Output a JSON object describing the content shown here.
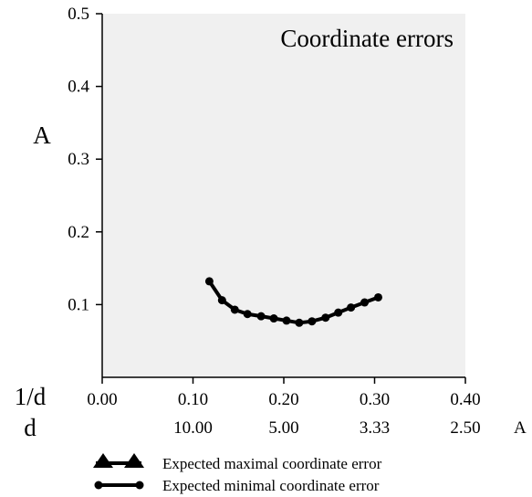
{
  "chart_data": {
    "type": "line",
    "title": "Coordinate errors",
    "ylabel": "A",
    "ylim": [
      0.0,
      0.5
    ],
    "yticks": [
      "0.1",
      "0.2",
      "0.3",
      "0.4",
      "0.5"
    ],
    "ytick_values": [
      0.1,
      0.2,
      0.3,
      0.4,
      0.5
    ],
    "xlim": [
      0.0,
      0.4
    ],
    "x_axis_rows": [
      {
        "label": "1/d",
        "ticks": [
          "0.00",
          "0.10",
          "0.20",
          "0.30",
          "0.40"
        ],
        "tick_values": [
          0.0,
          0.1,
          0.2,
          0.3,
          0.4
        ]
      },
      {
        "label": "d",
        "ticks": [
          "10.00",
          "5.00",
          "3.33",
          "2.50"
        ],
        "tick_values": [
          0.1,
          0.2,
          0.3,
          0.4
        ],
        "unit": "A"
      }
    ],
    "background": "#f0f0f0",
    "series": [
      {
        "name": "Expected maximal coordinate error",
        "marker": "triangle",
        "x": [],
        "y": []
      },
      {
        "name": "Expected minimal coordinate error",
        "marker": "circle",
        "x": [
          0.118,
          0.132,
          0.146,
          0.16,
          0.175,
          0.189,
          0.203,
          0.217,
          0.231,
          0.246,
          0.26,
          0.274,
          0.289,
          0.304
        ],
        "y": [
          0.132,
          0.106,
          0.093,
          0.087,
          0.084,
          0.081,
          0.078,
          0.075,
          0.077,
          0.082,
          0.089,
          0.096,
          0.103,
          0.11
        ]
      }
    ],
    "legend_position": "bottom"
  }
}
